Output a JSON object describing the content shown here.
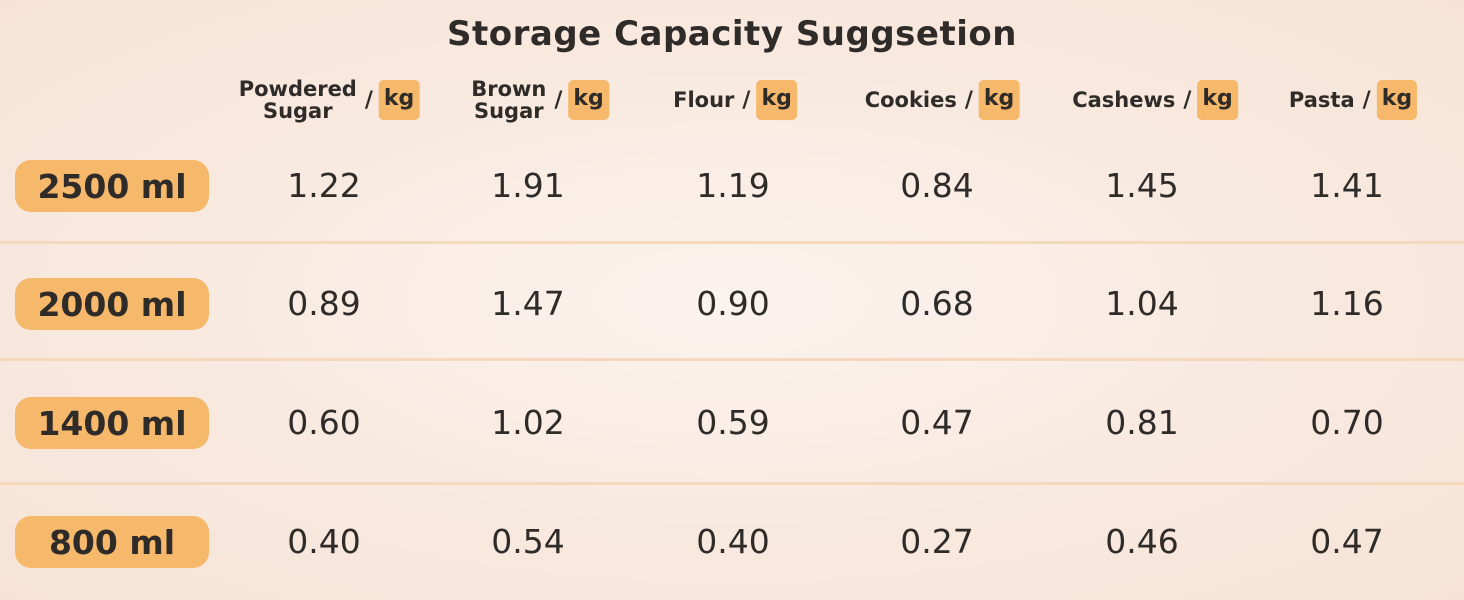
{
  "title": "Storage Capacity Suggsetion",
  "chart_data": {
    "type": "table",
    "title": "Storage Capacity Suggsetion",
    "unit_separator": "/",
    "unit": "kg",
    "columns": [
      {
        "name_lines": [
          "Powdered",
          "Sugar"
        ]
      },
      {
        "name_lines": [
          "Brown",
          "Sugar"
        ]
      },
      {
        "name_lines": [
          "Flour"
        ]
      },
      {
        "name_lines": [
          "Cookies"
        ]
      },
      {
        "name_lines": [
          "Cashews"
        ]
      },
      {
        "name_lines": [
          "Pasta"
        ]
      }
    ],
    "rows": [
      {
        "label": "2500 ml",
        "values": [
          "1.22",
          "1.91",
          "1.19",
          "0.84",
          "1.45",
          "1.41"
        ]
      },
      {
        "label": "2000 ml",
        "values": [
          "0.89",
          "1.47",
          "0.90",
          "0.68",
          "1.04",
          "1.16"
        ]
      },
      {
        "label": "1400 ml",
        "values": [
          "0.60",
          "1.02",
          "0.59",
          "0.47",
          "0.81",
          "0.70"
        ]
      },
      {
        "label": "800 ml",
        "values": [
          "0.40",
          "0.54",
          "0.40",
          "0.27",
          "0.46",
          "0.47"
        ]
      }
    ]
  },
  "colors": {
    "accent": "#f6b86b",
    "divider": "#f6d9bd",
    "text": "#2f2b29"
  }
}
